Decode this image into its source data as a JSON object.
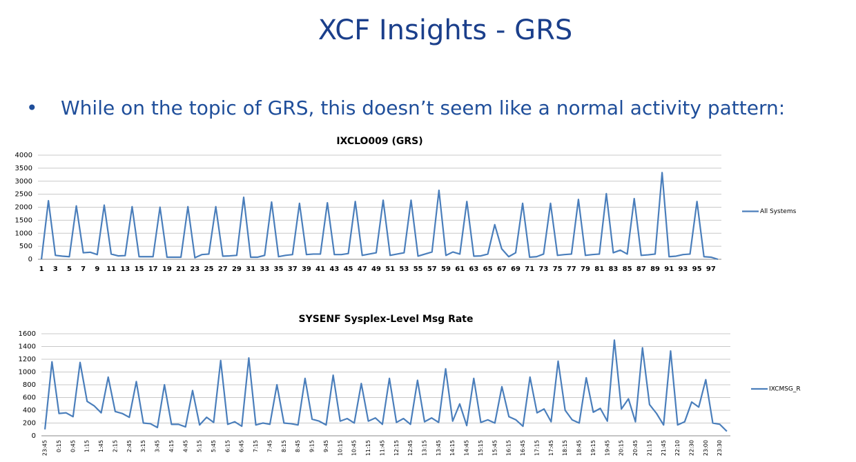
{
  "title": "XCF Insights - GRS",
  "bullet": "While on the topic of GRS, this doesn’t seem like a normal activity pattern:",
  "chart_data": [
    {
      "type": "line",
      "title": "IXCLO009 (GRS)",
      "categories": [
        "1",
        null,
        "3",
        null,
        "5",
        null,
        "7",
        null,
        "9",
        null,
        "11",
        null,
        "13",
        null,
        "15",
        null,
        "17",
        null,
        "19",
        null,
        "21",
        null,
        "23",
        null,
        "25",
        null,
        "27",
        null,
        "29",
        null,
        "31",
        null,
        "33",
        null,
        "35",
        null,
        "37",
        null,
        "39",
        null,
        "41",
        null,
        "43",
        null,
        "45",
        null,
        "47",
        null,
        "49",
        null,
        "51",
        null,
        "53",
        null,
        "55",
        null,
        "57",
        null,
        "59",
        null,
        "61",
        null,
        "63",
        null,
        "65",
        null,
        "67",
        null,
        "69",
        null,
        "71",
        null,
        "73",
        null,
        "75",
        null,
        "77",
        null,
        "79",
        null,
        "81",
        null,
        "83",
        null,
        "85",
        null,
        "87",
        null,
        "89",
        null,
        "91",
        null,
        "93",
        null,
        "95",
        null,
        "97",
        null
      ],
      "series": [
        {
          "name": "All Systems",
          "color": "#4a7ebb",
          "values": [
            0,
            2250,
            150,
            120,
            100,
            2050,
            250,
            270,
            180,
            2080,
            200,
            130,
            140,
            2020,
            100,
            100,
            100,
            2000,
            80,
            80,
            80,
            2020,
            60,
            180,
            200,
            2020,
            120,
            130,
            150,
            2380,
            80,
            80,
            150,
            2200,
            100,
            150,
            180,
            2150,
            180,
            200,
            200,
            2170,
            180,
            180,
            220,
            2220,
            150,
            200,
            250,
            2270,
            150,
            200,
            250,
            2270,
            120,
            200,
            280,
            2650,
            150,
            280,
            200,
            2220,
            120,
            130,
            200,
            1330,
            400,
            100,
            250,
            2150,
            80,
            100,
            200,
            2150,
            150,
            180,
            200,
            2300,
            150,
            180,
            200,
            2520,
            250,
            350,
            200,
            2330,
            150,
            170,
            200,
            3330,
            100,
            120,
            180,
            200,
            2220,
            100,
            80,
            0
          ]
        }
      ],
      "ylim": [
        0,
        4000
      ],
      "yticks": [
        0,
        500,
        1000,
        1500,
        2000,
        2500,
        3000,
        3500,
        4000
      ],
      "grid": true,
      "legend": "right",
      "x_label_rotation": 0
    },
    {
      "type": "line",
      "title": "SYSENF Sysplex-Level Msg Rate",
      "categories": [
        "23:45",
        null,
        "0:15",
        null,
        "0:45",
        null,
        "1:15",
        null,
        "1:45",
        null,
        "2:15",
        null,
        "2:45",
        null,
        "3:15",
        null,
        "3:45",
        null,
        "4:15",
        null,
        "4:45",
        null,
        "5:15",
        null,
        "5:45",
        null,
        "6:15",
        null,
        "6:45",
        null,
        "7:15",
        null,
        "7:45",
        null,
        "8:15",
        null,
        "8:45",
        null,
        "9:15",
        null,
        "9:45",
        null,
        "10:15",
        null,
        "10:45",
        null,
        "11:15",
        null,
        "11:45",
        null,
        "12:15",
        null,
        "12:45",
        null,
        "13:15",
        null,
        "13:45",
        null,
        "14:15",
        null,
        "14:45",
        null,
        "15:15",
        null,
        "15:45",
        null,
        "16:15",
        null,
        "16:45",
        null,
        "17:15",
        null,
        "17:45",
        null,
        "18:15",
        null,
        "18:45",
        null,
        "19:15",
        null,
        "19:45",
        null,
        "20:15",
        null,
        "20:45",
        null,
        "21:15",
        null,
        "21:45",
        null,
        "22:10",
        null,
        "22:30",
        null,
        "23:00",
        null,
        "23:30",
        null
      ],
      "series": [
        {
          "name": "IXCMSG_R",
          "color": "#4a7ebb",
          "values": [
            100,
            1160,
            350,
            360,
            300,
            1150,
            540,
            470,
            360,
            920,
            380,
            350,
            290,
            850,
            200,
            190,
            130,
            800,
            180,
            180,
            140,
            710,
            170,
            290,
            210,
            1180,
            180,
            220,
            150,
            1220,
            170,
            200,
            180,
            800,
            200,
            190,
            170,
            900,
            260,
            230,
            170,
            950,
            230,
            270,
            200,
            820,
            230,
            280,
            180,
            900,
            210,
            270,
            180,
            870,
            220,
            280,
            210,
            1050,
            230,
            500,
            160,
            900,
            210,
            250,
            200,
            770,
            300,
            250,
            150,
            920,
            360,
            420,
            220,
            1170,
            400,
            250,
            200,
            910,
            370,
            430,
            230,
            1500,
            420,
            580,
            220,
            1380,
            490,
            350,
            170,
            1330,
            170,
            220,
            530,
            450,
            880,
            200,
            180,
            70
          ]
        }
      ],
      "ylim": [
        0,
        1600
      ],
      "yticks": [
        0,
        200,
        400,
        600,
        800,
        1000,
        1200,
        1400,
        1600
      ],
      "grid": true,
      "legend": "right",
      "x_label_rotation": -90
    }
  ]
}
